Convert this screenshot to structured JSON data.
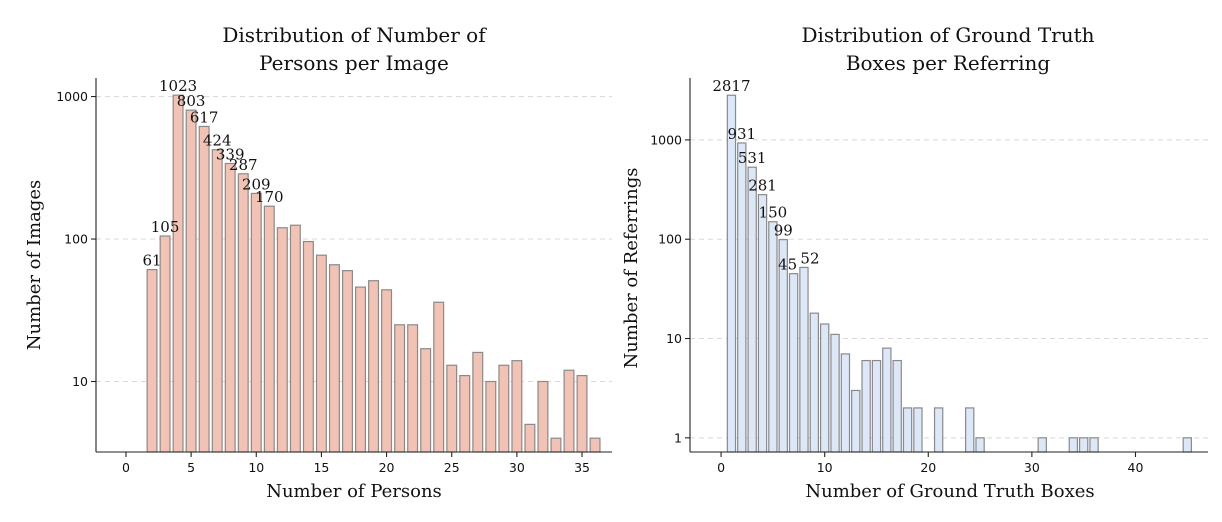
{
  "chart_data": [
    {
      "type": "bar",
      "title": [
        "Distribution of Number of",
        "Persons per Image"
      ],
      "xlabel": "Number of Persons",
      "ylabel": "Number of Images",
      "yscale": "log",
      "xlim": [
        -2.3,
        37.3
      ],
      "ylim": [
        3.2,
        1350
      ],
      "xticks": [
        0,
        5,
        10,
        15,
        20,
        25,
        30,
        35
      ],
      "yticks": [
        10,
        100,
        1000
      ],
      "grid": "y-dashed",
      "bar_color": "#f2c3b5",
      "edge_color": "#8a8a8a",
      "x": [
        2,
        3,
        4,
        5,
        6,
        7,
        8,
        9,
        10,
        11,
        12,
        13,
        14,
        15,
        16,
        17,
        18,
        19,
        20,
        21,
        22,
        23,
        24,
        25,
        26,
        27,
        28,
        29,
        30,
        31,
        32,
        33,
        34,
        35,
        36
      ],
      "values": [
        61,
        105,
        1023,
        803,
        617,
        424,
        339,
        287,
        209,
        170,
        120,
        125,
        96,
        77,
        66,
        60,
        46,
        51,
        44,
        25,
        25,
        17,
        36,
        13,
        11,
        16,
        10,
        13,
        14,
        5,
        10,
        4,
        12,
        11,
        4
      ],
      "labeled_values": [
        61,
        105,
        1023,
        803,
        617,
        424,
        339,
        287,
        209,
        170
      ]
    },
    {
      "type": "bar",
      "title": [
        "Distribution of Ground Truth",
        "Boxes per Referring"
      ],
      "xlabel": "Number of Ground Truth Boxes",
      "ylabel": "Number of Referrings",
      "yscale": "log",
      "xlim": [
        -3,
        47
      ],
      "ylim": [
        0.72,
        4200
      ],
      "xticks": [
        0,
        10,
        20,
        30,
        40
      ],
      "yticks": [
        1,
        10,
        100,
        1000
      ],
      "grid": "y-dashed",
      "bar_color": "#dce8f8",
      "edge_color": "#8a8a8a",
      "x": [
        1,
        2,
        3,
        4,
        5,
        6,
        7,
        8,
        9,
        10,
        11,
        12,
        13,
        14,
        15,
        16,
        17,
        18,
        19,
        21,
        24,
        25,
        31,
        34,
        35,
        36,
        45
      ],
      "values": [
        2817,
        931,
        531,
        281,
        150,
        99,
        45,
        52,
        18,
        14,
        11,
        7,
        3,
        6,
        6,
        8,
        6,
        2,
        2,
        2,
        2,
        1,
        1,
        1,
        1,
        1,
        1
      ],
      "labeled_values": [
        2817,
        931,
        531,
        281,
        150,
        99,
        45,
        52
      ]
    }
  ]
}
